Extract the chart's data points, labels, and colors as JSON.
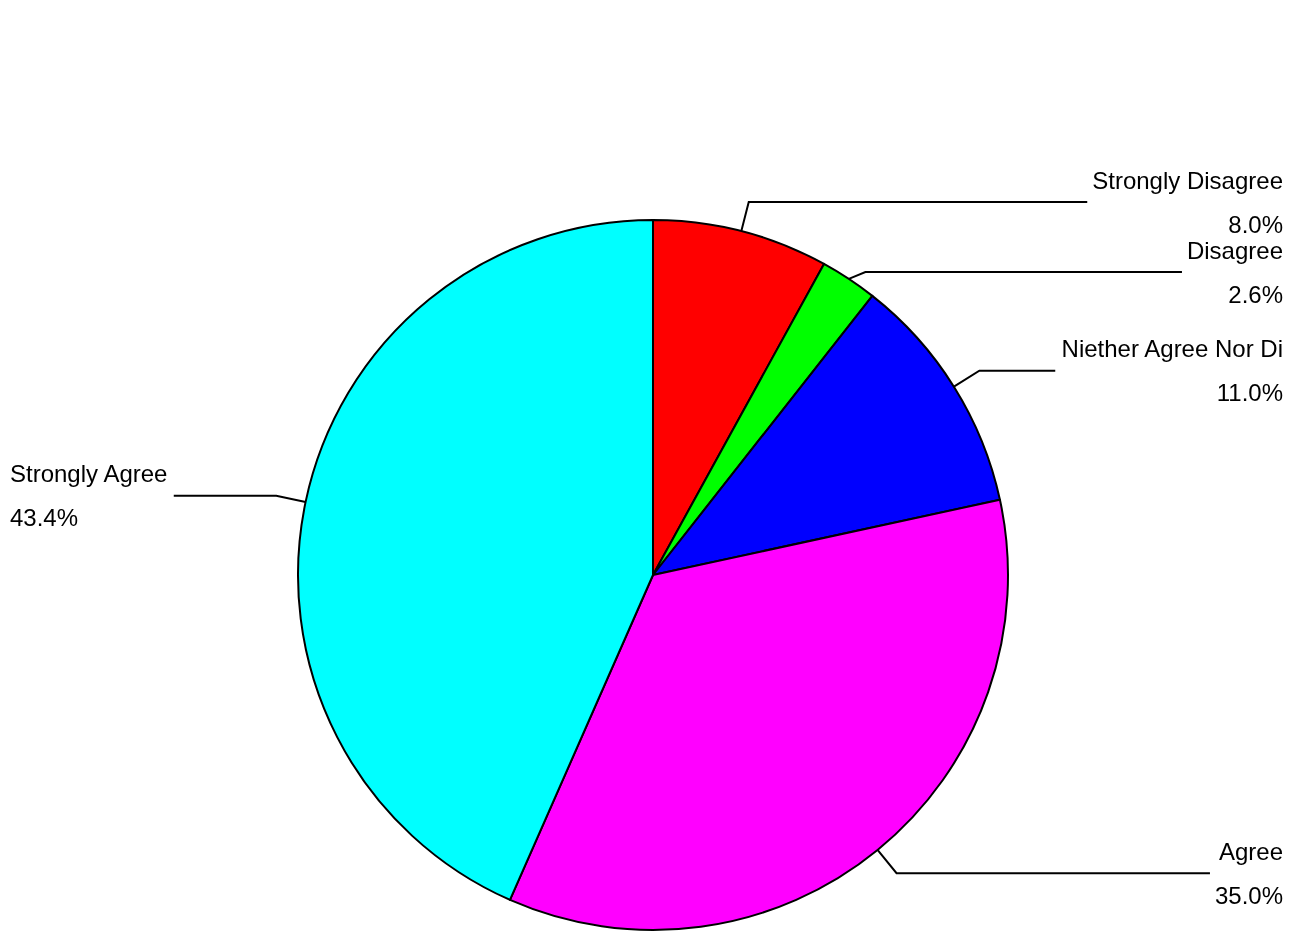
{
  "chart_data": {
    "type": "pie",
    "categories": [
      "Strongly Disagree",
      "Disagree",
      "Niether Agree Nor Di",
      "Agree",
      "Strongly Agree"
    ],
    "values": [
      8.0,
      2.6,
      11.0,
      35.0,
      43.4
    ],
    "value_labels": [
      "8.0%",
      "2.6%",
      "11.0%",
      "35.0%",
      "43.4%"
    ],
    "colors": [
      "#ff0000",
      "#00ff00",
      "#0000ff",
      "#ff00ff",
      "#00ffff"
    ],
    "legend": false
  }
}
